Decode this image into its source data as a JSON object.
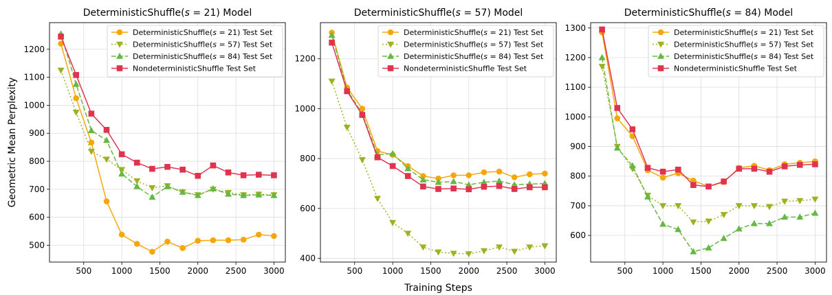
{
  "chart_data": [
    {
      "type": "line",
      "title": "DeterministicShuffle(s = 21) Model",
      "title_parts": [
        "DeterministicShuffle(",
        "s",
        " = 21) Model"
      ],
      "ylabel": "Geometric Mean Perplexity",
      "xlim": [
        50,
        3150
      ],
      "ylim": [
        440,
        1295
      ],
      "xticks": [
        500,
        1000,
        1500,
        2000,
        2500,
        3000
      ],
      "yticks": [
        500,
        600,
        700,
        800,
        900,
        1000,
        1100,
        1200
      ],
      "grid": true,
      "legend_position": "upper-right",
      "x": [
        200,
        400,
        600,
        800,
        1000,
        1200,
        1400,
        1600,
        1800,
        2000,
        2200,
        2400,
        2600,
        2800,
        3000
      ],
      "series": [
        {
          "name": "DeterministicShuffle(s = 21) Test Set",
          "name_parts": [
            "DeterministicShuffle(",
            "s",
            " = 21) Test Set"
          ],
          "color": "#f5a70a",
          "marker": "circle",
          "dash": "solid",
          "values": [
            1220,
            1025,
            867,
            657,
            538,
            505,
            477,
            513,
            490,
            516,
            518,
            518,
            520,
            538,
            533
          ]
        },
        {
          "name": "DeterministicShuffle(s = 57) Test Set",
          "name_parts": [
            "DeterministicShuffle(",
            "s",
            " = 57) Test Set"
          ],
          "color": "#a0b020",
          "marker": "triangle-down",
          "dash": "dotted",
          "values": [
            1125,
            975,
            835,
            807,
            770,
            730,
            705,
            712,
            690,
            680,
            700,
            688,
            680,
            682,
            680
          ]
        },
        {
          "name": "DeterministicShuffle(s = 84) Test Set",
          "name_parts": [
            "DeterministicShuffle(",
            "s",
            " = 84) Test Set"
          ],
          "color": "#66b845",
          "marker": "triangle-up",
          "dash": "dashed",
          "values": [
            1255,
            1075,
            910,
            875,
            755,
            710,
            672,
            710,
            690,
            678,
            702,
            683,
            678,
            680,
            678
          ]
        },
        {
          "name": "NondeterministicShuffle Test Set",
          "name_parts": [
            "NondeterministicShuffle Test Set",
            "",
            ""
          ],
          "color": "#e0344e",
          "marker": "square",
          "dash": "solid",
          "values": [
            1245,
            1108,
            970,
            912,
            825,
            795,
            773,
            780,
            770,
            748,
            785,
            760,
            750,
            752,
            750
          ]
        }
      ]
    },
    {
      "type": "line",
      "title": "DeterministicShuffle(s = 57) Model",
      "title_parts": [
        "DeterministicShuffle(",
        "s",
        " = 57) Model"
      ],
      "xlabel": "Training Steps",
      "xlim": [
        50,
        3150
      ],
      "ylim": [
        385,
        1345
      ],
      "xticks": [
        500,
        1000,
        1500,
        2000,
        2500,
        3000
      ],
      "yticks": [
        400,
        600,
        800,
        1000,
        1200
      ],
      "grid": true,
      "legend_position": "upper-right",
      "x": [
        200,
        400,
        600,
        800,
        1000,
        1200,
        1400,
        1600,
        1800,
        2000,
        2200,
        2400,
        2600,
        2800,
        3000
      ],
      "series": [
        {
          "name": "DeterministicShuffle(s = 21) Test Set",
          "name_parts": [
            "DeterministicShuffle(",
            "s",
            " = 21) Test Set"
          ],
          "color": "#f5a70a",
          "marker": "circle",
          "dash": "solid",
          "values": [
            1305,
            1085,
            1000,
            830,
            815,
            770,
            730,
            720,
            733,
            733,
            745,
            748,
            725,
            737,
            740
          ]
        },
        {
          "name": "DeterministicShuffle(s = 57) Test Set",
          "name_parts": [
            "DeterministicShuffle(",
            "s",
            " = 57) Test Set"
          ],
          "color": "#a0b020",
          "marker": "triangle-down",
          "dash": "dotted",
          "values": [
            1110,
            925,
            795,
            640,
            543,
            500,
            445,
            425,
            420,
            418,
            430,
            445,
            428,
            445,
            450
          ]
        },
        {
          "name": "DeterministicShuffle(s = 84) Test Set",
          "name_parts": [
            "DeterministicShuffle(",
            "s",
            " = 84) Test Set"
          ],
          "color": "#66b845",
          "marker": "triangle-up",
          "dash": "dashed",
          "values": [
            1295,
            1075,
            980,
            815,
            820,
            760,
            715,
            705,
            708,
            695,
            705,
            710,
            695,
            698,
            700
          ]
        },
        {
          "name": "NondeterministicShuffle Test Set",
          "name_parts": [
            "NondeterministicShuffle Test Set",
            "",
            ""
          ],
          "color": "#e0344e",
          "marker": "square",
          "dash": "solid",
          "values": [
            1265,
            1070,
            975,
            805,
            770,
            730,
            688,
            678,
            680,
            677,
            687,
            690,
            678,
            685,
            685
          ]
        }
      ]
    },
    {
      "type": "line",
      "title": "DeterministicShuffle(s = 84) Model",
      "title_parts": [
        "DeterministicShuffle(",
        "s",
        " = 84) Model"
      ],
      "xlim": [
        50,
        3150
      ],
      "ylim": [
        510,
        1318
      ],
      "xticks": [
        500,
        1000,
        1500,
        2000,
        2500,
        3000
      ],
      "yticks": [
        600,
        700,
        800,
        900,
        1000,
        1100,
        1200,
        1300
      ],
      "grid": true,
      "legend_position": "upper-right",
      "x": [
        200,
        400,
        600,
        800,
        1000,
        1200,
        1400,
        1600,
        1800,
        2000,
        2200,
        2400,
        2600,
        2800,
        3000
      ],
      "series": [
        {
          "name": "DeterministicShuffle(s = 21) Test Set",
          "name_parts": [
            "DeterministicShuffle(",
            "s",
            " = 21) Test Set"
          ],
          "color": "#f5a70a",
          "marker": "circle",
          "dash": "solid",
          "values": [
            1285,
            995,
            935,
            820,
            795,
            810,
            785,
            765,
            780,
            828,
            835,
            820,
            840,
            845,
            850
          ]
        },
        {
          "name": "DeterministicShuffle(s = 57) Test Set",
          "name_parts": [
            "DeterministicShuffle(",
            "s",
            " = 57) Test Set"
          ],
          "color": "#a0b020",
          "marker": "triangle-down",
          "dash": "dotted",
          "values": [
            1170,
            900,
            825,
            735,
            700,
            700,
            645,
            648,
            670,
            700,
            700,
            697,
            715,
            717,
            722
          ]
        },
        {
          "name": "DeterministicShuffle(s = 84) Test Set",
          "name_parts": [
            "DeterministicShuffle(",
            "s",
            " = 84) Test Set"
          ],
          "color": "#66b845",
          "marker": "triangle-up",
          "dash": "dashed",
          "values": [
            1200,
            895,
            835,
            730,
            638,
            620,
            545,
            558,
            590,
            622,
            640,
            640,
            662,
            662,
            675
          ]
        },
        {
          "name": "NondeterministicShuffle Test Set",
          "name_parts": [
            "NondeterministicShuffle Test Set",
            "",
            ""
          ],
          "color": "#e0344e",
          "marker": "square",
          "dash": "solid",
          "values": [
            1295,
            1030,
            958,
            828,
            815,
            822,
            770,
            765,
            782,
            825,
            825,
            815,
            833,
            838,
            840
          ]
        }
      ]
    }
  ]
}
